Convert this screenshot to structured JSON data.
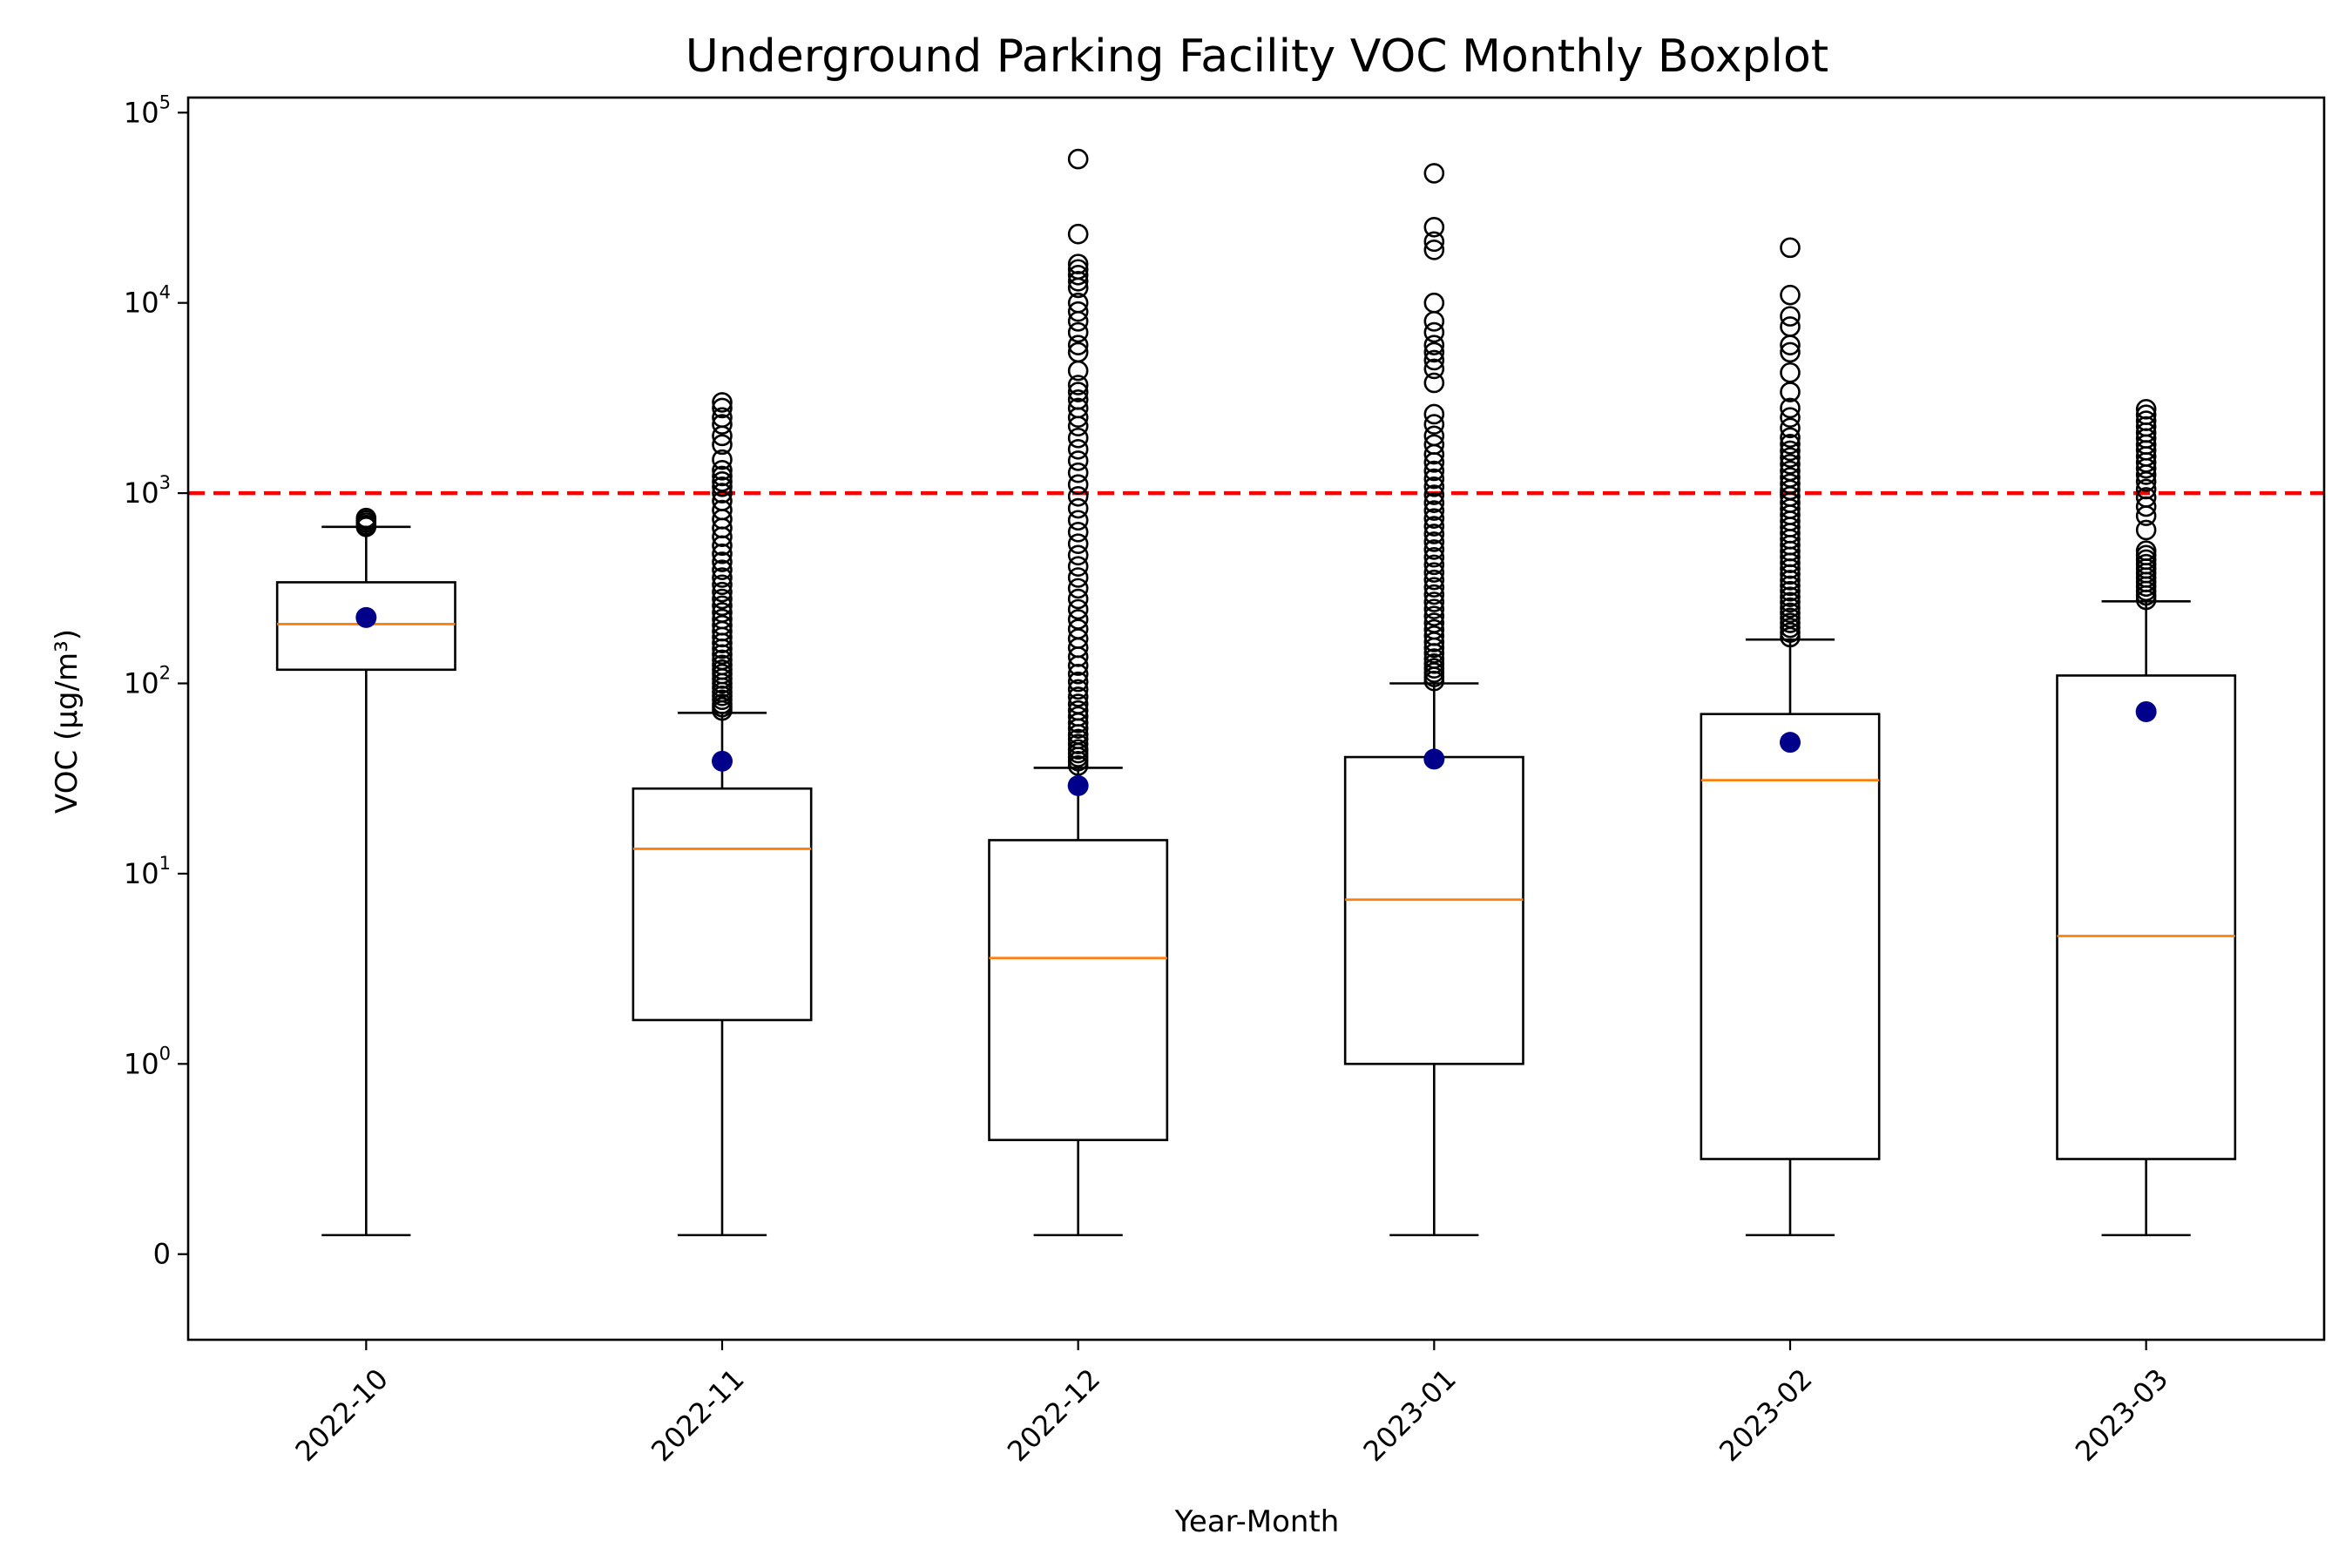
{
  "chart_data": {
    "type": "boxplot",
    "title": "Underground Parking Facility VOC Monthly Boxplot",
    "xlabel": "Year-Month",
    "ylabel": "VOC (μg/m³)",
    "y_scale": "symlog",
    "y_tick_labels": [
      {
        "value": 0,
        "base": "0",
        "exp": ""
      },
      {
        "value": 1,
        "base": "10",
        "exp": "0"
      },
      {
        "value": 10,
        "base": "10",
        "exp": "1"
      },
      {
        "value": 100,
        "base": "10",
        "exp": "2"
      },
      {
        "value": 1000,
        "base": "10",
        "exp": "3"
      },
      {
        "value": 10000,
        "base": "10",
        "exp": "4"
      },
      {
        "value": 100000,
        "base": "10",
        "exp": "5"
      }
    ],
    "ylim": [
      -0.45,
      120000
    ],
    "threshold": {
      "value": 1000,
      "color": "#ff0000",
      "style": "dashed"
    },
    "colors": {
      "box": "#000000",
      "median": "#ff7f0e",
      "mean": "#00008b",
      "flier": "#000000"
    },
    "grid": false,
    "categories": [
      {
        "label": "2022-10",
        "whisker_low": 0.1,
        "q1": 118,
        "median": 205,
        "q3": 340,
        "whisker_high": 665,
        "mean": 222,
        "fliers": [
          665,
          680,
          700,
          720,
          740
        ]
      },
      {
        "label": "2022-11",
        "whisker_low": 0.1,
        "q1": 1.7,
        "median": 13.5,
        "q3": 28,
        "whisker_high": 70,
        "mean": 39,
        "fliers": [
          72,
          75,
          78,
          82,
          86,
          90,
          95,
          100,
          106,
          112,
          118,
          125,
          133,
          142,
          152,
          163,
          175,
          188,
          202,
          218,
          236,
          256,
          278,
          302,
          330,
          360,
          395,
          435,
          480,
          530,
          590,
          655,
          730,
          815,
          910,
          1000,
          1080,
          1150,
          1230,
          1320,
          1500,
          1800,
          2000,
          2300,
          2500,
          2800,
          3000
        ]
      },
      {
        "label": "2022-12",
        "whisker_low": 0.1,
        "q1": 0.6,
        "median": 3.6,
        "q3": 15,
        "whisker_high": 36,
        "mean": 29,
        "fliers": [
          37,
          39,
          41,
          43,
          45,
          48,
          51,
          54,
          58,
          62,
          67,
          72,
          78,
          85,
          93,
          102,
          112,
          124,
          138,
          154,
          172,
          193,
          217,
          245,
          278,
          316,
          360,
          412,
          472,
          542,
          624,
          720,
          832,
          962,
          1110,
          1280,
          1480,
          1700,
          1950,
          2250,
          2500,
          2800,
          3100,
          3400,
          3700,
          4400,
          5500,
          6000,
          7000,
          8000,
          9000,
          10000,
          12000,
          13000,
          14000,
          15000,
          16000,
          23000,
          57000
        ]
      },
      {
        "label": "2023-01",
        "whisker_low": 0.1,
        "q1": 1.0,
        "median": 7.3,
        "q3": 41,
        "whisker_high": 100,
        "mean": 40,
        "fliers": [
          103,
          108,
          114,
          120,
          127,
          135,
          144,
          154,
          165,
          178,
          192,
          208,
          226,
          246,
          268,
          293,
          320,
          350,
          383,
          420,
          460,
          505,
          555,
          610,
          670,
          736,
          810,
          890,
          980,
          1080,
          1190,
          1310,
          1450,
          1600,
          1800,
          2000,
          2300,
          2600,
          3800,
          4500,
          5000,
          5500,
          6000,
          7000,
          8000,
          10000,
          19000,
          21000,
          25000,
          48000
        ]
      },
      {
        "label": "2023-02",
        "whisker_low": 0.1,
        "q1": 0.5,
        "median": 31,
        "q3": 69,
        "whisker_high": 170,
        "mean": 49,
        "fliers": [
          175,
          185,
          196,
          208,
          221,
          235,
          250,
          267,
          285,
          305,
          326,
          349,
          374,
          401,
          430,
          462,
          496,
          533,
          573,
          616,
          663,
          714,
          769,
          828,
          892,
          961,
          1040,
          1120,
          1210,
          1310,
          1420,
          1540,
          1670,
          1810,
          1960,
          2200,
          2500,
          2800,
          3400,
          4300,
          5500,
          6000,
          7500,
          8500,
          11000,
          19500
        ]
      },
      {
        "label": "2023-03",
        "whisker_low": 0.1,
        "q1": 0.5,
        "median": 4.7,
        "q3": 110,
        "whisker_high": 270,
        "mean": 71,
        "fliers": [
          275,
          290,
          306,
          323,
          341,
          360,
          380,
          401,
          423,
          447,
          472,
          498,
          640,
          760,
          850,
          950,
          1050,
          1150,
          1250,
          1350,
          1450,
          1560,
          1680,
          1800,
          1940,
          2080,
          2240,
          2400,
          2580,
          2760
        ]
      }
    ]
  }
}
